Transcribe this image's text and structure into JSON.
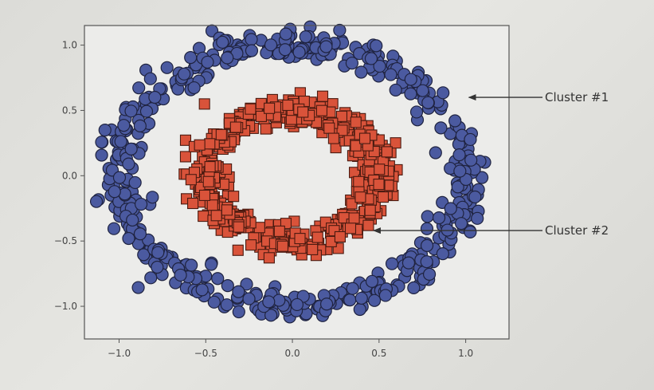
{
  "chart_data": {
    "type": "scatter",
    "xlim": [
      -1.2,
      1.25
    ],
    "ylim": [
      -1.25,
      1.15
    ],
    "x_ticks": [
      -1.0,
      -0.5,
      0.0,
      0.5,
      1.0
    ],
    "x_tick_labels": [
      "−1.0",
      "−0.5",
      "0.0",
      "0.5",
      "1.0"
    ],
    "y_ticks": [
      1.0,
      0.5,
      0.0,
      -0.5,
      -1.0
    ],
    "y_tick_labels": [
      "1.0",
      "0.5",
      "0.0",
      "−0.5",
      "−1.0"
    ],
    "grid": false,
    "series": [
      {
        "marker": "circle",
        "color": "#4b5aa0",
        "edge_color": "#1f2340",
        "center": [
          0.0,
          0.0
        ],
        "radius": [
          1.0,
          1.0
        ],
        "noise": 0.06,
        "count": 500
      },
      {
        "marker": "square",
        "color": "#d9533a",
        "edge_color": "#4a1a10",
        "center": [
          0.0,
          0.0
        ],
        "radius": [
          0.5,
          0.5
        ],
        "noise": 0.06,
        "count": 500
      }
    ],
    "annotations": [
      {
        "text": "Cluster #1",
        "target": [
          1.0,
          0.6
        ],
        "series": 0
      },
      {
        "text": "Cluster #2",
        "target": [
          0.45,
          -0.42
        ],
        "series": 1
      }
    ]
  }
}
